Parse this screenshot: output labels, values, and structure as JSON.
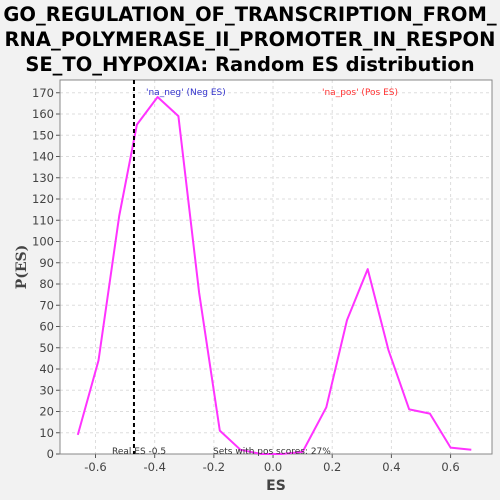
{
  "chart_data": {
    "type": "line",
    "title_lines": [
      "GO_REGULATION_OF_TRANSCRIPTION_FROM_",
      "RNA_POLYMERASE_II_PROMOTER_IN_RESPON",
      "SE_TO_HYPOXIA: Random ES distribution"
    ],
    "xlabel": "ES",
    "ylabel": "P(ES)",
    "xlim": [
      -0.72,
      0.74
    ],
    "ylim": [
      0,
      176
    ],
    "xticks": [
      -0.6,
      -0.4,
      -0.2,
      0.0,
      0.2,
      0.4,
      0.6
    ],
    "xtick_labels": [
      "-0.6",
      "-0.4",
      "-0.2",
      "0.0",
      "0.2",
      "0.4",
      "0.6"
    ],
    "yticks": [
      0,
      10,
      20,
      30,
      40,
      50,
      60,
      70,
      80,
      90,
      100,
      110,
      120,
      130,
      140,
      150,
      160,
      170
    ],
    "grid": true,
    "series": [
      {
        "color": "#ff33ff",
        "x": [
          -0.66,
          -0.59,
          -0.52,
          -0.46,
          -0.39,
          -0.32,
          -0.25,
          -0.18,
          -0.11,
          -0.04,
          0.03,
          0.1,
          0.18,
          0.25,
          0.32,
          0.39,
          0.46,
          0.53,
          0.6,
          0.67
        ],
        "y": [
          9,
          44,
          112,
          155,
          168,
          159,
          76,
          11,
          2,
          0,
          0,
          1,
          22,
          63,
          87,
          49,
          21,
          19,
          3,
          2
        ]
      }
    ],
    "real_es_line": {
      "x": -0.47,
      "color": "#000000",
      "style": "dashed"
    },
    "annotations": {
      "neg_label": "'na_neg' (Neg ES)",
      "pos_label": "'na_pos' (Pos ES)",
      "real_es": "Real ES -0.5",
      "pos_scores": "Sets with pos scores: 27%"
    },
    "colors": {
      "neg_label": "#3333cc",
      "pos_label": "#ff3333",
      "plot_bg": "#ffffff",
      "page_bg": "#f2f2f2",
      "grid": "#dddddd"
    }
  }
}
